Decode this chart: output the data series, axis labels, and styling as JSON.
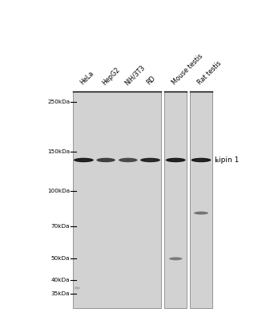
{
  "fig_bg": "#ffffff",
  "panel_bg": "#d4d4d4",
  "panel_edge": "#999999",
  "lane_labels": [
    "HeLa",
    "HepG2",
    "NIH/3T3",
    "RD",
    "Mouse testis",
    "Rat testis"
  ],
  "mw_markers": [
    "250kDa",
    "150kDa",
    "100kDa",
    "70kDa",
    "50kDa",
    "40kDa",
    "35kDa"
  ],
  "mw_values": [
    250,
    150,
    100,
    70,
    50,
    40,
    35
  ],
  "annotation": "Lipin 1",
  "main_mw": 138,
  "artifact_mw": 37,
  "mouse_secondary_mw": 50,
  "rat_secondary_mw": 80,
  "log_min": 1.462,
  "log_max": 2.491
}
